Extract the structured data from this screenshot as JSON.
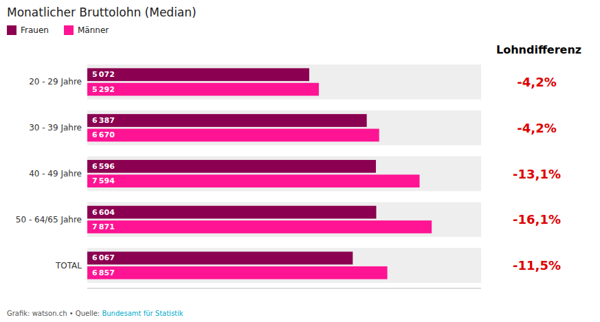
{
  "chart_data": {
    "type": "bar",
    "orientation": "horizontal",
    "title": "Monatlicher Bruttolohn (Median)",
    "categories": [
      "20 - 29 Jahre",
      "30 - 39 Jahre",
      "40 - 49 Jahre",
      "50 - 64/65 Jahre",
      "TOTAL"
    ],
    "series": [
      {
        "name": "Frauen",
        "color": "#8B0050",
        "values": [
          5072,
          6387,
          6596,
          6604,
          6067
        ],
        "value_labels": [
          "5 072",
          "6 387",
          "6 596",
          "6 604",
          "6 067"
        ]
      },
      {
        "name": "Männer",
        "color": "#FF1493",
        "values": [
          5292,
          6670,
          7594,
          7871,
          6857
        ],
        "value_labels": [
          "5 292",
          "6 670",
          "7 594",
          "7 871",
          "6 857"
        ]
      }
    ],
    "xlim": [
      0,
      9000
    ],
    "grid": false,
    "legend": "top left",
    "data_labels": true,
    "tick_labels": "y",
    "annotations": {
      "header": "Lohndifferenz",
      "labels": [
        "-4,2%",
        "-4,2%",
        "-13,1%",
        "-16,1%",
        "-11,5%"
      ],
      "color": "#DD0000"
    },
    "footer": [
      {
        "text": "Grafik: watson.ch • Quelle: "
      },
      {
        "text": "Bundesamt für Statistik",
        "color": "#00AACC"
      }
    ]
  }
}
